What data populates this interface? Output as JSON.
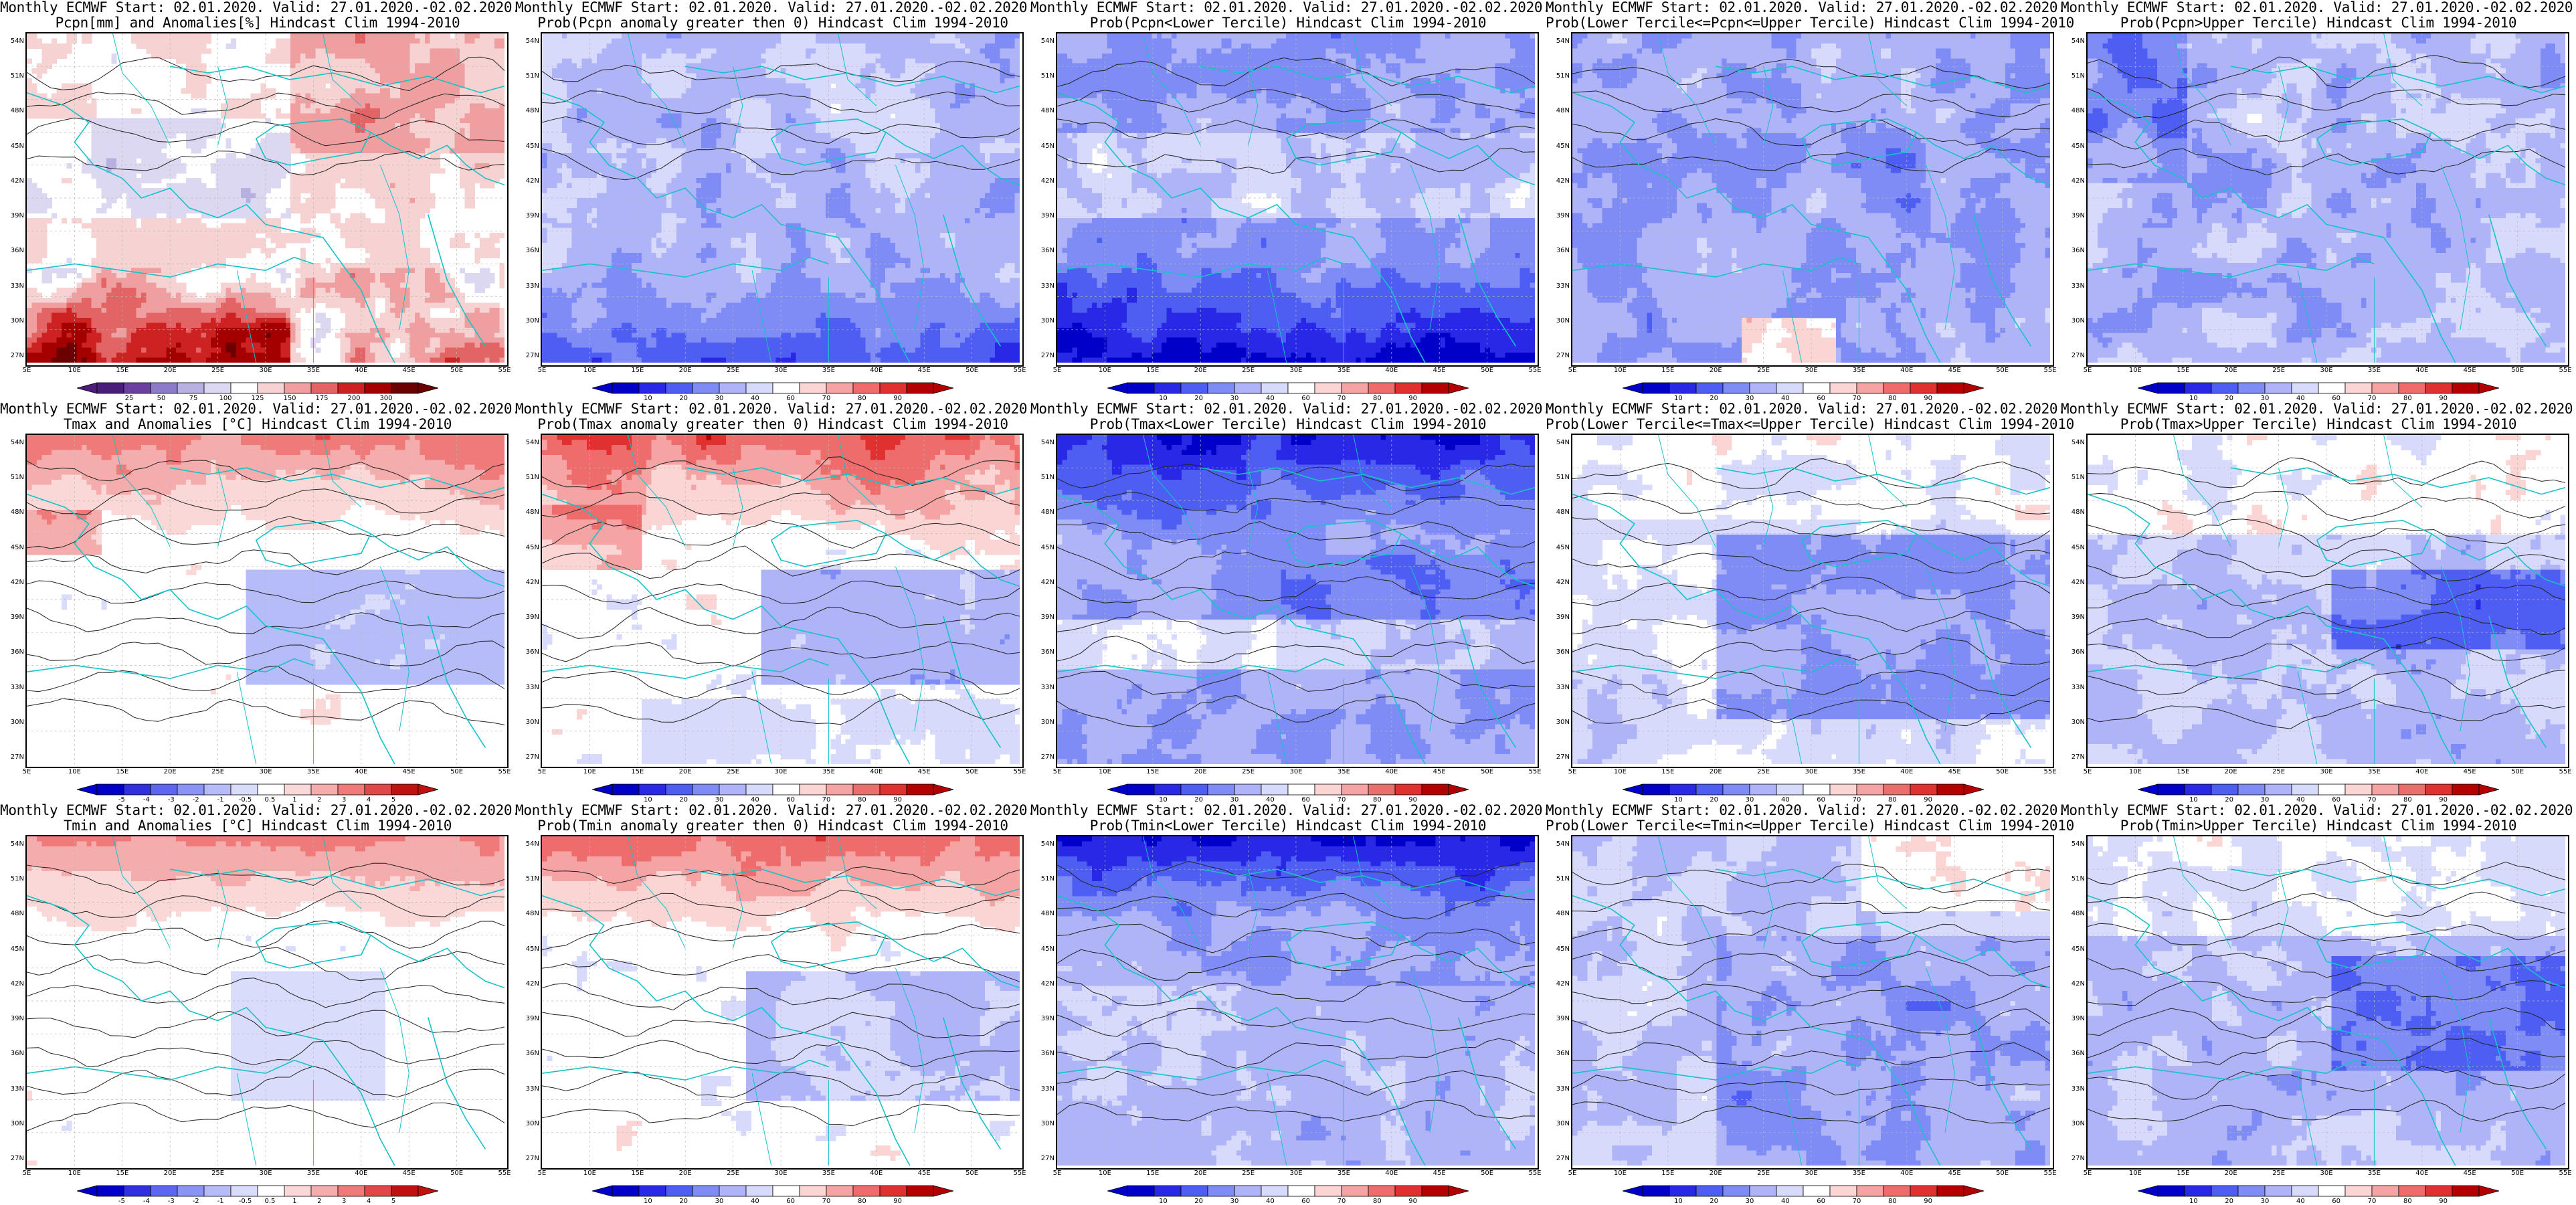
{
  "figure": {
    "lat_labels": [
      "54N",
      "51N",
      "48N",
      "45N",
      "42N",
      "39N",
      "36N",
      "33N",
      "30N",
      "27N"
    ],
    "lon_labels": [
      "5E",
      "10E",
      "15E",
      "20E",
      "25E",
      "30E",
      "35E",
      "40E",
      "45E",
      "50E",
      "55E"
    ],
    "palettes": {
      "anom_pcpn": [
        "#4a1d7a",
        "#6a3fa0",
        "#8d7ac8",
        "#b8b0e0",
        "#dcd8f2",
        "#ffffff",
        "#f6d2d2",
        "#ef9f9f",
        "#e26464",
        "#cc2222",
        "#a50000",
        "#6a0000"
      ],
      "prob": [
        "#0000c8",
        "#2828e6",
        "#4e5ef2",
        "#7f8cf5",
        "#aeb4f7",
        "#d7dafb",
        "#ffffff",
        "#fbd4d4",
        "#f5a3a3",
        "#ee6c6c",
        "#e03030",
        "#b40000"
      ],
      "anom_temp": [
        "#0000c8",
        "#3030e0",
        "#5c66f0",
        "#8a94f5",
        "#b5bcf8",
        "#d9ddfb",
        "#ffffff",
        "#fbd8d8",
        "#f5acac",
        "#ee7a7a",
        "#e04848",
        "#c01010"
      ]
    },
    "panels": [
      {
        "id": "pcpn-anom",
        "line1": "Monthly ECMWF Start: 02.01.2020. Valid: 27.01.2020.-02.02.2020.",
        "line2": "Pcpn[mm] and Anomalies[%] Hindcast Clim 1994-2010",
        "palette": "anom_pcpn",
        "pattern": "pcpn_anom",
        "colorbar_labels": [
          "25",
          "50",
          "75",
          "100",
          "125",
          "150",
          "175",
          "200",
          "300"
        ]
      },
      {
        "id": "pcpn-prob-gt0",
        "line1": "Monthly ECMWF Start: 02.01.2020. Valid: 27.01.2020.-02.02.2020.",
        "line2": "Prob(Pcpn anomaly greater then 0) Hindcast Clim 1994-2010",
        "palette": "prob",
        "pattern": "pcpn_prob_low",
        "colorbar_labels": [
          "10",
          "20",
          "30",
          "40",
          "60",
          "70",
          "80",
          "90"
        ]
      },
      {
        "id": "pcpn-prob-lower",
        "line1": "Monthly ECMWF Start: 02.01.2020. Valid: 27.01.2020.-02.02.2020.",
        "line2": "Prob(Pcpn<Lower Tercile) Hindcast Clim 1994-2010",
        "palette": "prob",
        "pattern": "pcpn_prob_lower",
        "colorbar_labels": [
          "10",
          "20",
          "30",
          "40",
          "60",
          "70",
          "80",
          "90"
        ]
      },
      {
        "id": "pcpn-prob-middle",
        "line1": "Monthly ECMWF Start: 02.01.2020. Valid: 27.01.2020.-02.02.2020.",
        "line2": "Prob(Lower Tercile<=Pcpn<=Upper Tercile) Hindcast Clim 1994-2010",
        "palette": "prob",
        "pattern": "pcpn_prob_mid",
        "colorbar_labels": [
          "10",
          "20",
          "30",
          "40",
          "60",
          "70",
          "80",
          "90"
        ]
      },
      {
        "id": "pcpn-prob-upper",
        "line1": "Monthly ECMWF Start: 02.01.2020. Valid: 27.01.2020.-02.02.2020.",
        "line2": "Prob(Pcpn>Upper Tercile) Hindcast Clim 1994-2010",
        "palette": "prob",
        "pattern": "pcpn_prob_up",
        "colorbar_labels": [
          "10",
          "20",
          "30",
          "40",
          "60",
          "70",
          "80",
          "90"
        ]
      },
      {
        "id": "tmax-anom",
        "line1": "Monthly ECMWF Start: 02.01.2020. Valid: 27.01.2020.-02.02.2020.",
        "line2": "Tmax and Anomalies [°C] Hindcast Clim 1994-2010",
        "palette": "anom_temp",
        "pattern": "temp_anom",
        "colorbar_labels": [
          "-5",
          "-4",
          "-3",
          "-2",
          "-1",
          "-0.5",
          "0.5",
          "1",
          "2",
          "3",
          "4",
          "5"
        ]
      },
      {
        "id": "tmax-prob-gt0",
        "line1": "Monthly ECMWF Start: 02.01.2020. Valid: 27.01.2020.-02.02.2020.",
        "line2": "Prob(Tmax anomaly greater then 0) Hindcast Clim 1994-2010",
        "palette": "prob",
        "pattern": "temp_prob_gt0",
        "colorbar_labels": [
          "10",
          "20",
          "30",
          "40",
          "60",
          "70",
          "80",
          "90"
        ]
      },
      {
        "id": "tmax-prob-lower",
        "line1": "Monthly ECMWF Start: 02.01.2020. Valid: 27.01.2020.-02.02.2020.",
        "line2": "Prob(Tmax<Lower Tercile) Hindcast Clim 1994-2010",
        "palette": "prob",
        "pattern": "temp_prob_lower",
        "colorbar_labels": [
          "10",
          "20",
          "30",
          "40",
          "60",
          "70",
          "80",
          "90"
        ]
      },
      {
        "id": "tmax-prob-middle",
        "line1": "Monthly ECMWF Start: 02.01.2020. Valid: 27.01.2020.-02.02.2020.",
        "line2": "Prob(Lower Tercile<=Tmax<=Upper Tercile) Hindcast Clim 1994-2010",
        "palette": "prob",
        "pattern": "temp_prob_mid",
        "colorbar_labels": [
          "10",
          "20",
          "30",
          "40",
          "60",
          "70",
          "80",
          "90"
        ]
      },
      {
        "id": "tmax-prob-upper",
        "line1": "Monthly ECMWF Start: 02.01.2020. Valid: 27.01.2020.-02.02.2020.",
        "line2": "Prob(Tmax>Upper Tercile) Hindcast Clim 1994-2010",
        "palette": "prob",
        "pattern": "temp_prob_up",
        "colorbar_labels": [
          "10",
          "20",
          "30",
          "40",
          "60",
          "70",
          "80",
          "90"
        ]
      },
      {
        "id": "tmin-anom",
        "line1": "Monthly ECMWF Start: 02.01.2020. Valid: 27.01.2020.-02.02.2020.",
        "line2": "Tmin and Anomalies [°C] Hindcast Clim 1994-2010",
        "palette": "anom_temp",
        "pattern": "temp_anom2",
        "colorbar_labels": [
          "-5",
          "-4",
          "-3",
          "-2",
          "-1",
          "-0.5",
          "0.5",
          "1",
          "2",
          "3",
          "4",
          "5"
        ]
      },
      {
        "id": "tmin-prob-gt0",
        "line1": "Monthly ECMWF Start: 02.01.2020. Valid: 27.01.2020.-02.02.2020.",
        "line2": "Prob(Tmin anomaly greater then 0) Hindcast Clim 1994-2010",
        "palette": "prob",
        "pattern": "temp_prob_gt0b",
        "colorbar_labels": [
          "10",
          "20",
          "30",
          "40",
          "60",
          "70",
          "80",
          "90"
        ]
      },
      {
        "id": "tmin-prob-lower",
        "line1": "Monthly ECMWF Start: 02.01.2020. Valid: 27.01.2020.-02.02.2020.",
        "line2": "Prob(Tmin<Lower Tercile) Hindcast Clim 1994-2010",
        "palette": "prob",
        "pattern": "temp_prob_lower2",
        "colorbar_labels": [
          "10",
          "20",
          "30",
          "40",
          "60",
          "70",
          "80",
          "90"
        ]
      },
      {
        "id": "tmin-prob-middle",
        "line1": "Monthly ECMWF Start: 02.01.2020. Valid: 27.01.2020.-02.02.2020.",
        "line2": "Prob(Lower Tercile<=Tmin<=Upper Tercile) Hindcast Clim 1994-2010",
        "palette": "prob",
        "pattern": "temp_prob_mid2",
        "colorbar_labels": [
          "10",
          "20",
          "30",
          "40",
          "60",
          "70",
          "80",
          "90"
        ]
      },
      {
        "id": "tmin-prob-upper",
        "line1": "Monthly ECMWF Start: 02.01.2020. Valid: 27.01.2020.-02.02.2020.",
        "line2": "Prob(Tmin>Upper Tercile) Hindcast Clim 1994-2010",
        "palette": "prob",
        "pattern": "temp_prob_up2",
        "colorbar_labels": [
          "10",
          "20",
          "30",
          "40",
          "60",
          "70",
          "80",
          "90"
        ]
      }
    ]
  }
}
